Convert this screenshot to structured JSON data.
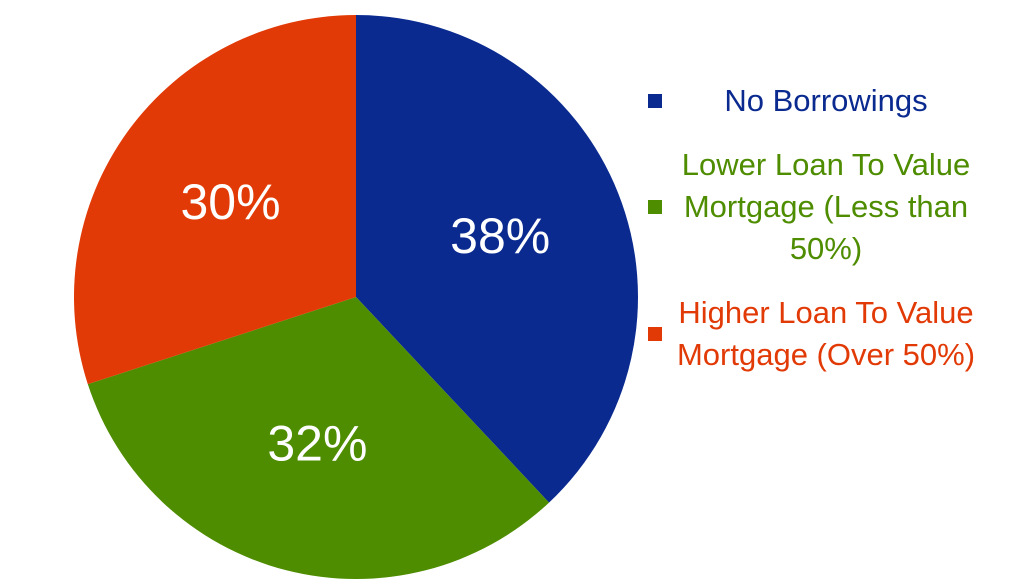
{
  "chart_data": {
    "type": "pie",
    "categories": [
      "No Borrowings",
      "Lower Loan To Value Mortgage (Less than 50%)",
      "Higher Loan To Value Mortgage (Over 50%)"
    ],
    "values": [
      38,
      32,
      30
    ],
    "value_labels": [
      "38%",
      "32%",
      "30%"
    ],
    "colors": [
      "#0a2a8f",
      "#4e8c00",
      "#e23a06"
    ],
    "legend": "right"
  }
}
